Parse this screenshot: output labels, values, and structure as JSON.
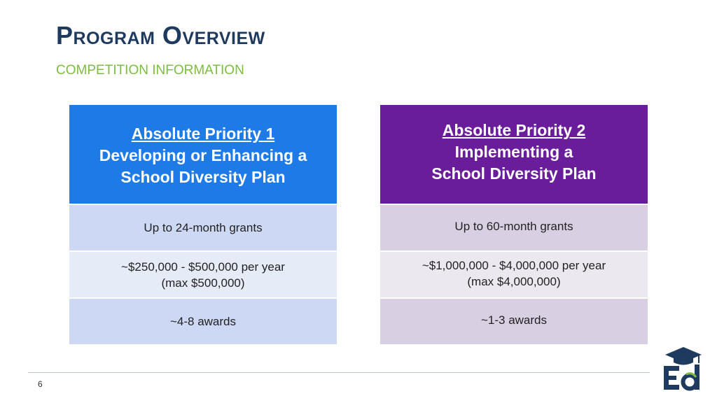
{
  "slide": {
    "title": "Program Overview",
    "subtitle": "COMPETITION INFORMATION",
    "page_number": "6"
  },
  "cards": [
    {
      "header_line1": "Absolute Priority 1",
      "header_line2": "Developing or Enhancing a",
      "header_line3": "School Diversity Plan",
      "grant_duration": "Up to 24-month grants",
      "funding_line1": "~$250,000 - $500,000 per year",
      "funding_line2": "(max $500,000)",
      "awards": "~4-8 awards"
    },
    {
      "header_line1": "Absolute Priority 2",
      "header_line2": "Implementing a",
      "header_line3": "School Diversity Plan",
      "grant_duration": "Up to 60-month grants",
      "funding_line1": "~$1,000,000 - $4,000,000 per year",
      "funding_line2": "(max $4,000,000)",
      "awards": "~1-3 awards"
    }
  ],
  "colors": {
    "title": "#1f3a5f",
    "subtitle": "#7cbd3f",
    "priority1_header": "#1e7ae6",
    "priority2_header": "#6a1d9a"
  },
  "logo": {
    "icon": "ed-graduation-cap-logo",
    "text": "Ed"
  }
}
